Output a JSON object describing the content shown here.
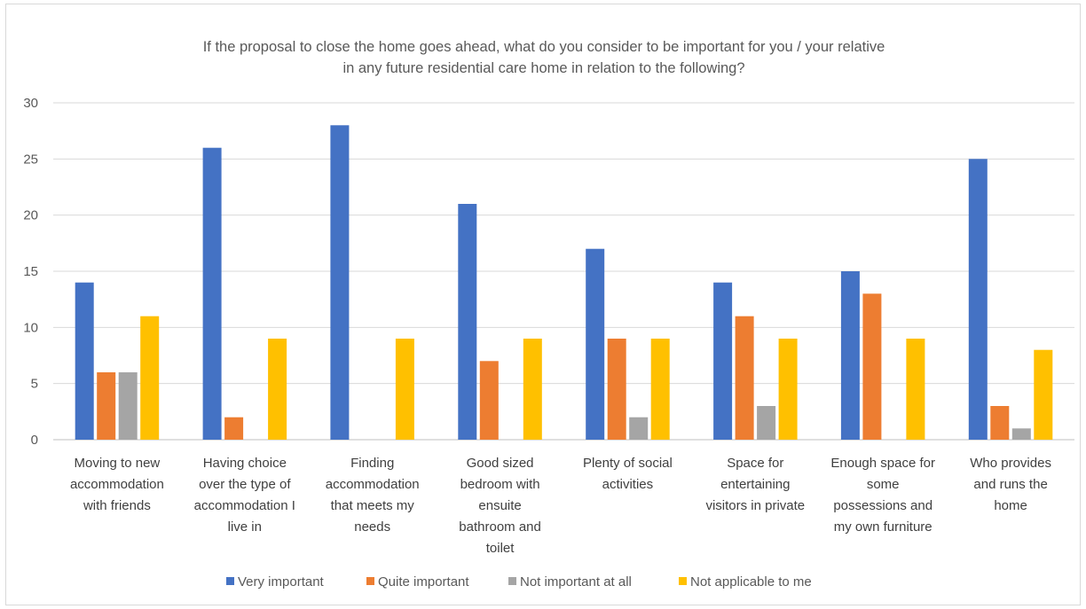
{
  "chart_data": {
    "type": "bar",
    "title": [
      "If the proposal to close the home goes ahead, what do you consider to be important for you / your relative",
      "in any future residential care home in relation to the following?"
    ],
    "categories": [
      [
        "Moving to new",
        "accommodation",
        "with friends"
      ],
      [
        "Having choice",
        "over the type of",
        "accommodation I",
        "live in"
      ],
      [
        "Finding",
        "accommodation",
        "that meets my",
        "needs"
      ],
      [
        "Good sized",
        "bedroom with",
        "ensuite",
        "bathroom and",
        "toilet"
      ],
      [
        "Plenty of social",
        "activities"
      ],
      [
        "Space for",
        "entertaining",
        "visitors in private"
      ],
      [
        "Enough space for",
        "some",
        "possessions and",
        "my own furniture"
      ],
      [
        "Who provides",
        "and runs the",
        "home"
      ]
    ],
    "series": [
      {
        "name": "Very important",
        "color": "#4472c4",
        "values": [
          14,
          26,
          28,
          21,
          17,
          14,
          15,
          25
        ]
      },
      {
        "name": "Quite important",
        "color": "#ed7d31",
        "values": [
          6,
          2,
          0,
          7,
          9,
          11,
          13,
          3
        ]
      },
      {
        "name": "Not important at all",
        "color": "#a5a5a5",
        "values": [
          6,
          0,
          0,
          0,
          2,
          3,
          0,
          1
        ]
      },
      {
        "name": "Not applicable to me",
        "color": "#ffc000",
        "values": [
          11,
          9,
          9,
          9,
          9,
          9,
          9,
          8
        ]
      }
    ],
    "ylim": [
      0,
      30
    ],
    "yticks": [
      "0",
      "5",
      "10",
      "15",
      "20",
      "25",
      "30"
    ],
    "grid": true,
    "legend": "bottom"
  }
}
